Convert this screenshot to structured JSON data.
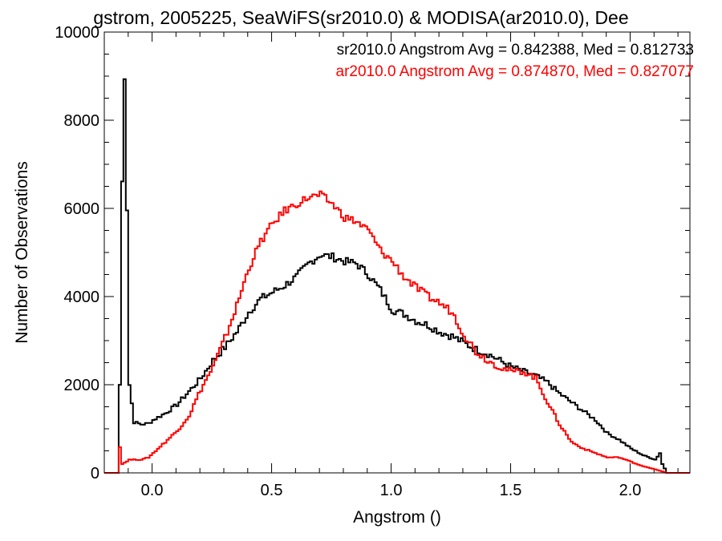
{
  "chart_data": {
    "type": "line",
    "title": "gstrom, 2005225, SeaWiFS(sr2010.0) & MODISA(ar2010.0), Dee",
    "xlabel": "Angstrom ()",
    "ylabel": "Number of Observations",
    "xlim": [
      -0.2,
      2.25
    ],
    "ylim": [
      0,
      10000
    ],
    "x_ticks": [
      "0.0",
      "0.5",
      "1.0",
      "1.5",
      "2.0"
    ],
    "y_ticks": [
      "0",
      "2000",
      "4000",
      "6000",
      "8000",
      "10000"
    ],
    "grid": false,
    "legend_position": "top-right",
    "annotations": [
      {
        "text": "sr2010.0 Angstrom Avg = 0.842388, Med = 0.812733",
        "color": "#000000"
      },
      {
        "text": "ar2010.0 Angstrom Avg = 0.874870, Med = 0.827077",
        "color": "#ff0000"
      }
    ],
    "series": [
      {
        "color": "#000000",
        "points": [
          [
            -0.2,
            0
          ],
          [
            -0.15,
            0
          ],
          [
            -0.14,
            2000
          ],
          [
            -0.13,
            6600
          ],
          [
            -0.12,
            9000
          ],
          [
            -0.11,
            6000
          ],
          [
            -0.1,
            2000
          ],
          [
            -0.08,
            1150
          ],
          [
            -0.05,
            1100
          ],
          [
            -0.02,
            1120
          ],
          [
            0.0,
            1200
          ],
          [
            0.05,
            1350
          ],
          [
            0.1,
            1550
          ],
          [
            0.15,
            1850
          ],
          [
            0.2,
            2150
          ],
          [
            0.25,
            2550
          ],
          [
            0.3,
            2850
          ],
          [
            0.35,
            3200
          ],
          [
            0.4,
            3650
          ],
          [
            0.45,
            3950
          ],
          [
            0.5,
            4100
          ],
          [
            0.55,
            4250
          ],
          [
            0.6,
            4450
          ],
          [
            0.65,
            4750
          ],
          [
            0.7,
            4950
          ],
          [
            0.75,
            4900
          ],
          [
            0.8,
            4800
          ],
          [
            0.85,
            4750
          ],
          [
            0.9,
            4500
          ],
          [
            0.95,
            4150
          ],
          [
            1.0,
            3700
          ],
          [
            1.05,
            3600
          ],
          [
            1.1,
            3450
          ],
          [
            1.15,
            3350
          ],
          [
            1.2,
            3200
          ],
          [
            1.25,
            3100
          ],
          [
            1.3,
            2950
          ],
          [
            1.35,
            2800
          ],
          [
            1.4,
            2700
          ],
          [
            1.45,
            2550
          ],
          [
            1.5,
            2400
          ],
          [
            1.55,
            2300
          ],
          [
            1.6,
            2200
          ],
          [
            1.65,
            2050
          ],
          [
            1.7,
            1800
          ],
          [
            1.75,
            1600
          ],
          [
            1.8,
            1400
          ],
          [
            1.85,
            1200
          ],
          [
            1.9,
            900
          ],
          [
            1.95,
            750
          ],
          [
            2.0,
            550
          ],
          [
            2.05,
            400
          ],
          [
            2.1,
            300
          ],
          [
            2.12,
            450
          ],
          [
            2.13,
            200
          ],
          [
            2.15,
            0
          ],
          [
            2.25,
            0
          ]
        ]
      },
      {
        "color": "#ff0000",
        "points": [
          [
            -0.2,
            0
          ],
          [
            -0.15,
            0
          ],
          [
            -0.14,
            600
          ],
          [
            -0.13,
            200
          ],
          [
            -0.1,
            300
          ],
          [
            -0.05,
            300
          ],
          [
            -0.02,
            350
          ],
          [
            0.0,
            450
          ],
          [
            0.05,
            700
          ],
          [
            0.1,
            950
          ],
          [
            0.15,
            1300
          ],
          [
            0.2,
            1900
          ],
          [
            0.25,
            2400
          ],
          [
            0.3,
            3050
          ],
          [
            0.35,
            3800
          ],
          [
            0.4,
            4650
          ],
          [
            0.45,
            5250
          ],
          [
            0.5,
            5650
          ],
          [
            0.55,
            5950
          ],
          [
            0.6,
            6100
          ],
          [
            0.65,
            6250
          ],
          [
            0.7,
            6300
          ],
          [
            0.75,
            6100
          ],
          [
            0.8,
            5800
          ],
          [
            0.85,
            5700
          ],
          [
            0.9,
            5500
          ],
          [
            0.95,
            5050
          ],
          [
            1.0,
            4800
          ],
          [
            1.05,
            4450
          ],
          [
            1.1,
            4200
          ],
          [
            1.15,
            4000
          ],
          [
            1.2,
            3850
          ],
          [
            1.25,
            3650
          ],
          [
            1.3,
            3150
          ],
          [
            1.35,
            2750
          ],
          [
            1.4,
            2550
          ],
          [
            1.45,
            2400
          ],
          [
            1.5,
            2300
          ],
          [
            1.55,
            2300
          ],
          [
            1.6,
            2150
          ],
          [
            1.65,
            1600
          ],
          [
            1.7,
            1100
          ],
          [
            1.75,
            700
          ],
          [
            1.8,
            550
          ],
          [
            1.85,
            450
          ],
          [
            1.9,
            350
          ],
          [
            1.95,
            350
          ],
          [
            2.0,
            250
          ],
          [
            2.05,
            150
          ],
          [
            2.1,
            80
          ],
          [
            2.15,
            0
          ],
          [
            2.25,
            0
          ]
        ]
      }
    ]
  }
}
